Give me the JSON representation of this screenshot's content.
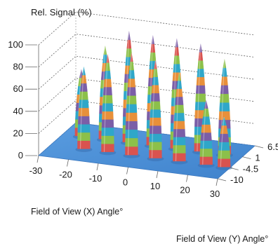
{
  "chart_data": {
    "type": "surface-3d",
    "title": "",
    "zlabel": "Rel. Signal (%)",
    "xlabel": "Field of View (X) Angle°",
    "ylabel": "Field of View (Y) Angle°",
    "z_ticks": [
      "0",
      "20",
      "40",
      "60",
      "80",
      "100"
    ],
    "x_ticks": [
      "-30",
      "-20",
      "-10",
      "0",
      "10",
      "20",
      "30"
    ],
    "y_ticks": [
      "6.5",
      "1",
      "-4.5",
      "-10"
    ],
    "zlim": [
      0,
      100
    ],
    "xlim": [
      -30,
      30
    ],
    "ylim": [
      -10,
      6.5
    ],
    "grid": true,
    "color_bands": [
      "#d9534f",
      "#8cc04a",
      "#2fa7c9",
      "#7b5ea7",
      "#e8903a",
      "#2fa7c9",
      "#8cc04a",
      "#7b5ea7",
      "#e8903a",
      "#2fa7c9",
      "#8cc04a",
      "#d9534f",
      "#7b5ea7",
      "#2fa7c9"
    ],
    "base_color": "#4a8fd6",
    "peaks": [
      {
        "x": -24,
        "y": 1,
        "z": 60
      },
      {
        "x": -16,
        "y": 1,
        "z": 84
      },
      {
        "x": -8,
        "y": 1,
        "z": 100
      },
      {
        "x": 0,
        "y": 1,
        "z": 99
      },
      {
        "x": 8,
        "y": 1,
        "z": 99
      },
      {
        "x": 16,
        "y": 1,
        "z": 97
      },
      {
        "x": 24,
        "y": 1,
        "z": 86
      },
      {
        "x": -19,
        "y": -4.5,
        "z": 74
      },
      {
        "x": -11,
        "y": -4.5,
        "z": 88
      },
      {
        "x": -3,
        "y": -4.5,
        "z": 92
      },
      {
        "x": 5,
        "y": -4.5,
        "z": 88
      },
      {
        "x": 13,
        "y": -4.5,
        "z": 80
      },
      {
        "x": 22,
        "y": -4.5,
        "z": 58
      },
      {
        "x": 28,
        "y": -4.5,
        "z": 45
      }
    ]
  }
}
